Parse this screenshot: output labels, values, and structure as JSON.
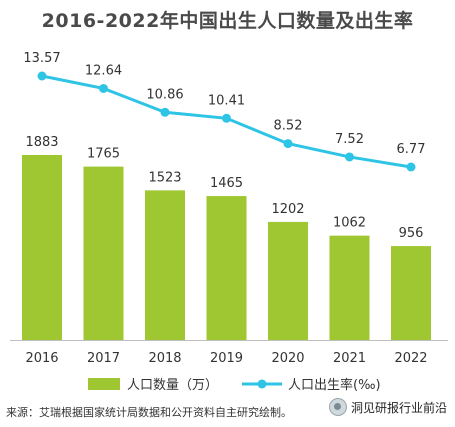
{
  "chart_data": {
    "type": "bar+line",
    "title": "2016-2022年中国出生人口数量及出生率",
    "categories": [
      "2016",
      "2017",
      "2018",
      "2019",
      "2020",
      "2021",
      "2022"
    ],
    "series": [
      {
        "name": "人口数量（万）",
        "type": "bar",
        "color": "#9ec731",
        "values": [
          1883,
          1765,
          1523,
          1465,
          1202,
          1062,
          956
        ]
      },
      {
        "name": "人口出生率(‰)",
        "type": "line",
        "color": "#2ec4e6",
        "values": [
          13.57,
          12.64,
          10.86,
          10.41,
          8.52,
          7.52,
          6.77
        ]
      }
    ],
    "legend_position": "bottom",
    "grid": false
  },
  "footer": {
    "source": "来源：艾瑞根据国家统计局数据和公开资料自主研究绘制。",
    "watermark": "洞见研报行业前沿"
  }
}
